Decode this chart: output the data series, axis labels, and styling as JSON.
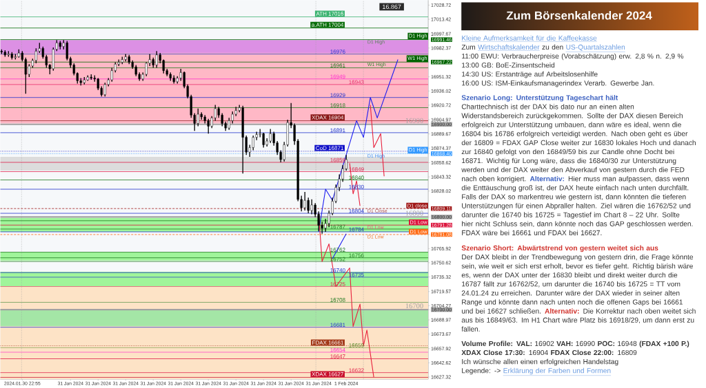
{
  "chart_data": {
    "type": "candlestick",
    "categories": [
      null,
      null,
      null,
      null,
      null,
      null,
      "2024.01.30 22:55",
      null,
      null,
      null,
      null,
      null,
      null,
      null,
      null,
      null,
      null,
      null,
      null,
      null,
      "31 Jan 2024",
      null,
      null,
      null,
      null,
      null,
      null,
      null,
      "31 Jan 2024",
      null,
      null,
      null,
      null,
      null,
      null,
      null,
      "31 Jan 2024",
      null,
      null,
      null,
      null,
      null,
      null,
      null,
      "31 Jan 2024",
      null,
      null,
      null,
      null,
      null,
      null,
      null,
      "31 Jan 2024",
      null,
      null,
      null,
      null,
      null,
      null,
      null,
      "31 Jan 2024",
      null,
      null,
      null,
      null,
      null,
      null,
      null,
      "31 Jan 2024",
      null,
      null,
      null,
      null,
      null,
      null,
      null,
      "31 Jan 2024",
      null,
      null,
      null,
      null,
      null,
      null,
      null,
      "31 Jan 2024",
      null,
      null,
      null,
      null,
      null,
      null,
      null,
      "31 Jan 2024",
      null,
      null,
      null,
      null,
      null,
      null,
      null,
      "1 Feb 2024",
      null,
      null,
      null,
      null,
      null,
      null,
      null,
      null,
      null,
      null,
      null,
      null,
      null,
      null,
      null,
      null,
      null,
      null,
      null,
      null,
      null,
      null,
      null
    ],
    "ohlc": [
      [
        16979,
        16981,
        16976,
        16978
      ],
      [
        16978,
        16980,
        16973,
        16975
      ],
      [
        16975,
        16979,
        16973,
        16976
      ],
      [
        16976,
        16978,
        16970,
        16972
      ],
      [
        16972,
        16976,
        16970,
        16973
      ],
      [
        16973,
        16981,
        16972,
        16977
      ],
      [
        16977,
        16979,
        16968,
        16970
      ],
      [
        16970,
        16972,
        16933,
        16954
      ],
      [
        16954,
        16965,
        16951,
        16963
      ],
      [
        16963,
        16971,
        16961,
        16969
      ],
      [
        16969,
        16982,
        16966,
        16979
      ],
      [
        16979,
        16988,
        16977,
        16982
      ],
      [
        16982,
        16984,
        16971,
        16973
      ],
      [
        16973,
        16975,
        16961,
        16964
      ],
      [
        16964,
        16965,
        16954,
        16960
      ],
      [
        16960,
        16983,
        16958,
        16981
      ],
      [
        16981,
        16991,
        16979,
        16988
      ],
      [
        16988,
        16990,
        16981,
        16984
      ],
      [
        16984,
        16991,
        16981,
        16988
      ],
      [
        16988,
        16990,
        16969,
        16971
      ],
      [
        16971,
        16973,
        16961,
        16964
      ],
      [
        16964,
        16966,
        16953,
        16955
      ],
      [
        16955,
        16956,
        16944,
        16947
      ],
      [
        16947,
        16950,
        16942,
        16945
      ],
      [
        16945,
        16951,
        16943,
        16948
      ],
      [
        16948,
        16953,
        16947,
        16951
      ],
      [
        16951,
        16954,
        16948,
        16950
      ],
      [
        16950,
        16953,
        16946,
        16949
      ],
      [
        16949,
        16950,
        16937,
        16939
      ],
      [
        16939,
        16941,
        16930,
        16932
      ],
      [
        16932,
        16945,
        16930,
        16943
      ],
      [
        16943,
        16950,
        16941,
        16948
      ],
      [
        16948,
        16961,
        16946,
        16958
      ],
      [
        16958,
        16967,
        16956,
        16965
      ],
      [
        16965,
        16970,
        16963,
        16967
      ],
      [
        16967,
        16973,
        16965,
        16970
      ],
      [
        16970,
        16976,
        16968,
        16973
      ],
      [
        16973,
        16975,
        16965,
        16967
      ],
      [
        16967,
        16969,
        16960,
        16962
      ],
      [
        16962,
        16964,
        16952,
        16954
      ],
      [
        16954,
        16956,
        16947,
        16949
      ],
      [
        16949,
        16956,
        16947,
        16954
      ],
      [
        16954,
        16967,
        16952,
        16966
      ],
      [
        16966,
        16976,
        16963,
        16970
      ],
      [
        16970,
        16972,
        16961,
        16964
      ],
      [
        16964,
        16979,
        16961,
        16975
      ],
      [
        16975,
        16977,
        16966,
        16969
      ],
      [
        16969,
        16970,
        16955,
        16958
      ],
      [
        16958,
        16960,
        16952,
        16954
      ],
      [
        16954,
        16956,
        16947,
        16950
      ],
      [
        16950,
        16953,
        16944,
        16946
      ],
      [
        16946,
        16952,
        16944,
        16950
      ],
      [
        16950,
        16960,
        16947,
        16956
      ],
      [
        16956,
        16957,
        16939,
        16941
      ],
      [
        16941,
        16943,
        16928,
        16930
      ],
      [
        16930,
        16932,
        16907,
        16910
      ],
      [
        16910,
        16912,
        16893,
        16901
      ],
      [
        16901,
        16917,
        16898,
        16911
      ],
      [
        16911,
        16913,
        16905,
        16908
      ],
      [
        16908,
        16910,
        16901,
        16904
      ],
      [
        16904,
        16906,
        16890,
        16898
      ],
      [
        16898,
        16909,
        16896,
        16907
      ],
      [
        16907,
        16921,
        16904,
        16917
      ],
      [
        16917,
        16919,
        16907,
        16910
      ],
      [
        16910,
        16912,
        16898,
        16901
      ],
      [
        16901,
        16903,
        16893,
        16896
      ],
      [
        16896,
        16907,
        16894,
        16904
      ],
      [
        16904,
        16914,
        16901,
        16911
      ],
      [
        16911,
        16919,
        16909,
        16915
      ],
      [
        16915,
        16921,
        16913,
        16918
      ],
      [
        16918,
        16920,
        16847,
        16886
      ],
      [
        16886,
        16888,
        16867,
        16870
      ],
      [
        16870,
        16878,
        16865,
        16875
      ],
      [
        16875,
        16888,
        16872,
        16886
      ],
      [
        16886,
        16892,
        16883,
        16889
      ],
      [
        16889,
        16895,
        16886,
        16890
      ],
      [
        16890,
        16891,
        16875,
        16878
      ],
      [
        16878,
        16885,
        16876,
        16882
      ],
      [
        16882,
        16895,
        16880,
        16890
      ],
      [
        16890,
        16892,
        16877,
        16880
      ],
      [
        16880,
        16882,
        16867,
        16870
      ],
      [
        16870,
        16872,
        16859,
        16862
      ],
      [
        16862,
        16881,
        16860,
        16878
      ],
      [
        16878,
        16905,
        16876,
        16902
      ],
      [
        16902,
        16923,
        16896,
        16899
      ],
      [
        16899,
        16901,
        16878,
        16882
      ],
      [
        16882,
        16884,
        16817,
        16819
      ],
      [
        16819,
        16823,
        16806,
        16810
      ],
      [
        16810,
        16827,
        16807,
        16818
      ],
      [
        16818,
        16821,
        16804,
        16807
      ],
      [
        16807,
        16819,
        16803,
        16813
      ],
      [
        16813,
        16815,
        16800,
        16803
      ],
      [
        16803,
        16806,
        16785,
        16791
      ],
      [
        16791,
        16795,
        16782,
        16788
      ],
      [
        16788,
        16798,
        16784,
        16793
      ],
      [
        16793,
        16807,
        16789,
        16804
      ],
      [
        16804,
        16821,
        16802,
        16817
      ],
      [
        16817,
        16835,
        16815,
        16832
      ],
      [
        16832,
        16846,
        16828,
        16841
      ],
      [
        16841,
        16856,
        16838,
        16852
      ],
      [
        16852,
        16867,
        16850,
        16862
      ],
      null,
      null,
      null,
      null,
      null,
      null,
      null,
      null,
      null,
      null,
      null,
      null,
      null,
      null,
      null,
      null,
      null,
      null,
      null,
      null,
      null,
      null,
      null
    ],
    "ylim": [
      16625,
      17034
    ],
    "yticks": [
      17028.72,
      17013.42,
      16997.67,
      16991.46,
      16982.37,
      16967.22,
      16951.32,
      16936.02,
      16920.72,
      16904.97,
      {
        "value": 16900,
        "label": "16900.00"
      },
      16889.67,
      16874.37,
      {
        "value": 16868.4,
        "label": "16868.40"
      },
      16858.62,
      16843.32,
      16828.02,
      16809.11,
      {
        "value": 16800,
        "label": "16800.00"
      },
      16791.28,
      16781.08,
      16765.92,
      16750.62,
      16735.32,
      16719.57,
      16704.27,
      {
        "value": 16700,
        "label": "16700.00"
      },
      16688.97,
      16673.67,
      16657.92,
      16642.62,
      16627.32
    ],
    "series": [
      {
        "type": "line",
        "color": "#1c1cf0",
        "values": [
          null,
          null,
          null,
          null,
          null,
          null,
          null,
          null,
          null,
          null,
          null,
          null,
          null,
          null,
          null,
          null,
          null,
          null,
          null,
          null,
          null,
          null,
          null,
          null,
          null,
          null,
          null,
          null,
          null,
          null,
          null,
          null,
          null,
          null,
          null,
          null,
          null,
          null,
          null,
          null,
          null,
          null,
          null,
          null,
          null,
          null,
          null,
          null,
          null,
          null,
          null,
          null,
          null,
          null,
          null,
          null,
          null,
          null,
          null,
          null,
          null,
          null,
          null,
          null,
          null,
          null,
          null,
          null,
          null,
          null,
          null,
          null,
          null,
          null,
          null,
          null,
          null,
          null,
          null,
          null,
          null,
          null,
          null,
          null,
          null,
          null,
          null,
          null,
          null,
          null,
          null,
          null,
          16784,
          null,
          16830,
          null,
          16818,
          null,
          null,
          null,
          null,
          null,
          null,
          16904,
          null,
          16886,
          null,
          16929,
          null,
          16907,
          null,
          null,
          null,
          null,
          null,
          16970,
          null,
          null,
          null,
          null,
          null,
          null,
          null,
          null
        ]
      },
      {
        "type": "line",
        "color": "#1c1cf0",
        "values": [
          null,
          null,
          null,
          null,
          null,
          null,
          null,
          null,
          null,
          null,
          null,
          null,
          null,
          null,
          null,
          null,
          null,
          null,
          null,
          null,
          null,
          null,
          null,
          null,
          null,
          null,
          null,
          null,
          null,
          null,
          null,
          null,
          null,
          null,
          null,
          null,
          null,
          null,
          null,
          null,
          null,
          null,
          null,
          null,
          null,
          null,
          null,
          null,
          null,
          null,
          null,
          null,
          null,
          null,
          null,
          null,
          null,
          null,
          null,
          null,
          null,
          null,
          null,
          null,
          null,
          null,
          null,
          null,
          null,
          null,
          null,
          null,
          null,
          null,
          null,
          null,
          null,
          null,
          null,
          null,
          null,
          null,
          null,
          null,
          null,
          null,
          null,
          null,
          null,
          null,
          null,
          null,
          null,
          null,
          null,
          null,
          16755,
          null,
          null,
          null,
          16782,
          null,
          null,
          null,
          null,
          null,
          null,
          null,
          null,
          null,
          null,
          null,
          null,
          null,
          null,
          null,
          null,
          null,
          null,
          null,
          null,
          null,
          null,
          null
        ]
      },
      {
        "type": "line",
        "color": "#e8203c",
        "values": [
          null,
          null,
          null,
          null,
          null,
          null,
          null,
          null,
          null,
          null,
          null,
          null,
          null,
          null,
          null,
          null,
          null,
          null,
          null,
          null,
          null,
          null,
          null,
          null,
          null,
          null,
          null,
          null,
          null,
          null,
          null,
          null,
          null,
          null,
          null,
          null,
          null,
          null,
          null,
          null,
          null,
          null,
          null,
          null,
          null,
          null,
          null,
          null,
          null,
          null,
          null,
          null,
          null,
          null,
          null,
          null,
          null,
          null,
          null,
          null,
          null,
          null,
          null,
          null,
          null,
          null,
          null,
          null,
          null,
          null,
          null,
          null,
          null,
          null,
          null,
          null,
          null,
          null,
          null,
          null,
          null,
          null,
          null,
          null,
          null,
          null,
          null,
          null,
          null,
          null,
          null,
          null,
          null,
          null,
          null,
          null,
          null,
          null,
          null,
          null,
          null,
          null,
          null,
          null,
          null,
          null,
          null,
          16921,
          16875,
          null,
          16890,
          16844,
          null,
          null,
          null,
          null,
          null,
          null,
          null,
          null,
          null,
          null,
          null,
          null
        ]
      },
      {
        "type": "line",
        "color": "#e8203c",
        "values": [
          null,
          null,
          null,
          null,
          null,
          null,
          null,
          null,
          null,
          null,
          null,
          null,
          null,
          null,
          null,
          null,
          null,
          null,
          null,
          null,
          null,
          null,
          null,
          null,
          null,
          null,
          null,
          null,
          null,
          null,
          null,
          null,
          null,
          null,
          null,
          null,
          null,
          null,
          null,
          null,
          null,
          null,
          null,
          null,
          null,
          null,
          null,
          null,
          null,
          null,
          null,
          null,
          null,
          null,
          null,
          null,
          null,
          null,
          null,
          null,
          null,
          null,
          null,
          null,
          null,
          null,
          null,
          null,
          null,
          null,
          null,
          null,
          null,
          null,
          null,
          null,
          null,
          null,
          null,
          null,
          null,
          null,
          null,
          null,
          null,
          null,
          null,
          null,
          null,
          null,
          null,
          null,
          null,
          null,
          null,
          null,
          null,
          null,
          null,
          null,
          null,
          16858,
          16825,
          16839,
          16812,
          null,
          null,
          null,
          null,
          null,
          null,
          null,
          null,
          null,
          null,
          null,
          null,
          null,
          null,
          null,
          null,
          null,
          null,
          null
        ]
      },
      {
        "type": "line",
        "color": "#e8203c",
        "values": [
          null,
          null,
          null,
          null,
          null,
          null,
          null,
          null,
          null,
          null,
          null,
          null,
          null,
          null,
          null,
          null,
          null,
          null,
          null,
          null,
          null,
          null,
          null,
          null,
          null,
          null,
          null,
          null,
          null,
          null,
          null,
          null,
          null,
          null,
          null,
          null,
          null,
          null,
          null,
          null,
          null,
          null,
          null,
          null,
          null,
          null,
          null,
          null,
          null,
          null,
          null,
          null,
          null,
          null,
          null,
          null,
          null,
          null,
          null,
          null,
          null,
          null,
          null,
          null,
          null,
          null,
          null,
          null,
          null,
          null,
          null,
          null,
          null,
          null,
          null,
          null,
          null,
          null,
          null,
          null,
          null,
          null,
          null,
          null,
          null,
          null,
          null,
          null,
          null,
          null,
          null,
          null,
          16804,
          16752,
          null,
          16771,
          null,
          16725,
          null,
          null,
          null,
          16745,
          16682,
          null,
          16706,
          16661,
          16678,
          null,
          16627,
          null,
          null,
          null,
          null,
          null,
          null,
          null,
          null,
          null,
          null,
          null,
          null,
          null,
          null,
          null
        ]
      }
    ],
    "bands": [
      {
        "axis": "y",
        "from": 16977,
        "to": 16991,
        "color": "#dc90e4"
      },
      {
        "axis": "y",
        "from": 16901,
        "to": 16977,
        "color": "#ffb8c6"
      },
      {
        "axis": "y",
        "from": 16850,
        "to": 16865,
        "color": "#dcdcdc"
      },
      {
        "axis": "y",
        "from": 16784,
        "to": 16799,
        "color": "#a0f59a"
      },
      {
        "axis": "y",
        "from": 16753,
        "to": 16762,
        "color": "#a0f59a"
      },
      {
        "axis": "y",
        "from": 16725,
        "to": 16741,
        "color": "#a0f59a"
      },
      {
        "axis": "y",
        "from": 16625,
        "to": 16725,
        "color": "#fde3c6"
      },
      {
        "axis": "y",
        "from": 16682,
        "to": 16700,
        "color": "#a4e6a6"
      }
    ],
    "ref_lines": [
      {
        "axis": "y",
        "value": 17016,
        "label": "ATH 17016",
        "color": "#3cb371"
      },
      {
        "axis": "y",
        "value": 17004,
        "label": "a.ATH 17004",
        "color": "#0a6e0a"
      },
      {
        "axis": "y",
        "value": 16991.46,
        "label": "D1 High",
        "color": "#006400"
      },
      {
        "axis": "y",
        "value": 16976,
        "label": "16976",
        "color": "#2233cc"
      },
      {
        "axis": "y",
        "value": 16967.22,
        "label": "W1 High",
        "color": "#006400"
      },
      {
        "axis": "y",
        "value": 16961,
        "label": "16961",
        "color": "#1e7a1e"
      },
      {
        "axis": "y",
        "value": 16949,
        "label": "16949",
        "color": "#ff33cc"
      },
      {
        "axis": "y",
        "value": 16943,
        "label": "16943",
        "color": "#e8306e"
      },
      {
        "axis": "y",
        "value": 16929,
        "label": "16929",
        "color": "#2233cc"
      },
      {
        "axis": "y",
        "value": 16918,
        "label": "16918",
        "color": "#1e7a1e"
      },
      {
        "axis": "y",
        "value": 16904,
        "label": "XDAX 16904",
        "color": "#8b1a1a"
      },
      {
        "axis": "y",
        "value": 16900,
        "label": "16900",
        "color": "#a2a2a2"
      },
      {
        "axis": "y",
        "value": 16891,
        "label": "16891",
        "color": "#2233cc"
      },
      {
        "axis": "y",
        "value": 16871,
        "label": "CoD 16871",
        "color": "#1010c8",
        "line_style": "dotted"
      },
      {
        "axis": "y",
        "value": 16868.4,
        "label": "D1 High",
        "color": "#3399ff",
        "line_style": "dotted"
      },
      {
        "axis": "y",
        "value": 16859,
        "label": "16859",
        "color": "#e0204a"
      },
      {
        "axis": "y",
        "value": 16849,
        "label": "16849",
        "color": "#e0204a"
      },
      {
        "axis": "y",
        "value": 16840,
        "label": "16840",
        "color": "#1e7a1e"
      },
      {
        "axis": "y",
        "value": 16830,
        "label": "16830",
        "color": "#2233cc"
      },
      {
        "axis": "y",
        "value": 16809.11,
        "label": "D1 close",
        "color": "#a01818",
        "line_style": "dashed"
      },
      {
        "axis": "y",
        "value": 16804,
        "label": "16804",
        "color": "#2233cc"
      },
      {
        "axis": "y",
        "value": 16800,
        "label": "16800",
        "color": "#a2a2a2"
      },
      {
        "axis": "y",
        "value": 16796,
        "color": "#1e7a1e"
      },
      {
        "axis": "y",
        "value": 16791.28,
        "label": "D1 Low",
        "color": "#dc143c"
      },
      {
        "axis": "y",
        "value": 16787,
        "label": "16787",
        "color": "#1e7a1e"
      },
      {
        "axis": "y",
        "value": 16784,
        "label": "16784",
        "color": "#2233cc"
      },
      {
        "axis": "y",
        "value": 16781.08,
        "label": "D1 Low",
        "color": "#ff6a13",
        "line_style": "dashed"
      },
      {
        "axis": "y",
        "value": 16762,
        "label": "16762",
        "color": "#1e7a1e"
      },
      {
        "axis": "y",
        "value": 16756,
        "label": "16756",
        "color": "#1e7a1e"
      },
      {
        "axis": "y",
        "value": 16752,
        "label": "16752",
        "color": "#1e7a1e"
      },
      {
        "axis": "y",
        "value": 16740,
        "label": "16740",
        "color": "#2233cc"
      },
      {
        "axis": "y",
        "value": 16735,
        "label": "16735",
        "color": "#2233cc"
      },
      {
        "axis": "y",
        "value": 16725,
        "label": "16725",
        "color": "#e0204a"
      },
      {
        "axis": "y",
        "value": 16708,
        "label": "16708",
        "color": "#1e7a1e"
      },
      {
        "axis": "y",
        "value": 16700,
        "label": "16700",
        "color": "#a2a2a2"
      },
      {
        "axis": "y",
        "value": 16681,
        "label": "16681",
        "color": "#2233cc"
      },
      {
        "axis": "y",
        "value": 16661,
        "label": "FDAX 16661",
        "color": "#a33a1a",
        "line_style": "dotted"
      },
      {
        "axis": "y",
        "value": 16659,
        "label": "16659",
        "color": "#5a8a2a"
      },
      {
        "axis": "y",
        "value": 16654,
        "label": "16654",
        "color": "#ff33cc"
      },
      {
        "axis": "y",
        "value": 16647,
        "label": "16647",
        "color": "#e0204a"
      },
      {
        "axis": "y",
        "value": 16632,
        "label": "16632",
        "color": "#e0204a"
      },
      {
        "axis": "y",
        "value": 16627,
        "label": "XDAX 16627",
        "color": "#c8102e"
      }
    ],
    "annotations": [
      {
        "text": "D1 High",
        "y": 16991.46
      },
      {
        "text": "W1 High",
        "y": 16967.22
      },
      {
        "text": "D1 High",
        "y": 16868.4
      },
      {
        "text": "D1 Close",
        "y": 16809.11
      },
      {
        "text": "D1 Low",
        "y": 16791.28
      },
      {
        "text": "D1 Low",
        "y": 16781.08
      },
      "16.867",
      "Zum Börsenkalender 2024",
      "Kleine Aufmerksamkeit für die Kaffeekasse",
      "Zum",
      "Wirtschaftskalender",
      "zu den",
      "US-Quartalszahlen",
      "11:00 EWU: Verbraucherpreise (Vorabschätzung) erw. 2,8 % n. 2,9 %",
      "13:00 GB: BoE-Zinsentscheid",
      "14:30 US: Erstanträge auf Arbeitslosenhilfe",
      "16:00 US: ISM-Einkaufsmanagerindex Verarb. Gewerbe Jan.",
      "Szenario Long: Unterstützung Tageschart hält",
      "Charttechnisch ist der DAX bis dato nur an einen alten Widerstandsbereich zurückgekommen. Sollte der DAX diesen Bereich erfolgreich zur Unterstützung umbauen, dann wäre es ideal, wenn die 16804 bis 16786 erfolgreich verteidigt werden. Nach oben geht es über der 16809 = FDAX GAP Close weiter zur 16830 lokales Hoch und danach zur 16840 gefolgt von den 16849/59 bis zur Candle ohne Docht bei 16871. Wichtig für Long wäre, dass die 16840/30 zur Unterstützung werden und der DAX weiter den Abverkauf von gestern durch die FED nach oben korrigiert.",
      "Alternativ:",
      "Hier muss man aufpassen, dass wenn die Enttäuschung groß ist, der DAX heute einfach nach unten durchfällt. Falls der DAX so markentreu wie gestern ist, dann könnten die tieferen Unterstützungen für einen Abpraller halten. Ziel wären die 16762/52 und darunter die 16740 bis 16725 = Tagestief im Chart 8 – 22 Uhr. Sollte hier nicht Schluss sein, dann könnte noch das GAP geschlossen werden. FDAX wäre bei 16661 und FDAX bei 16627.",
      "Szenario Short: Abwärtstrend von gestern weitet sich aus",
      "Der DAX bleibt in der Trendbewegung von gestern drin, die Frage könnte sein, wie weit er sich erst erholt, bevor es tiefer geht. Richtig bärish wäre es, wenn der DAX unter der 16830 bleibt und direkt weiter durch die 16787 fällt zur 16762/52, um darunter die 16740 bis 16725 = TT vom 24.01.24 zu erreichen. Darunter wäre der DAX wieder in seiner alten Range und könnte dann nach unten noch die offenen Gaps bei 16661 und bei 16627 schließen.",
      "Alternativ:",
      "Die Korrektur nach oben weitet sich aus bis 16849/63. Im H1 Chart wäre Platz bis 16918/29, um dann erst zu fallen.",
      "**Volume Profile: VAL:** 16902 **VAH:** 16990 **POC:** 16948 **(FDAX +100 P.)**",
      "**XDAX Close 17:30:** 16904 **FDAX Close 22:00:** 16809",
      "Ich wünsche allen einen erfolgreichen Handelstag",
      "Legende: ->",
      "Erklärung der Farben und Formen"
    ]
  }
}
